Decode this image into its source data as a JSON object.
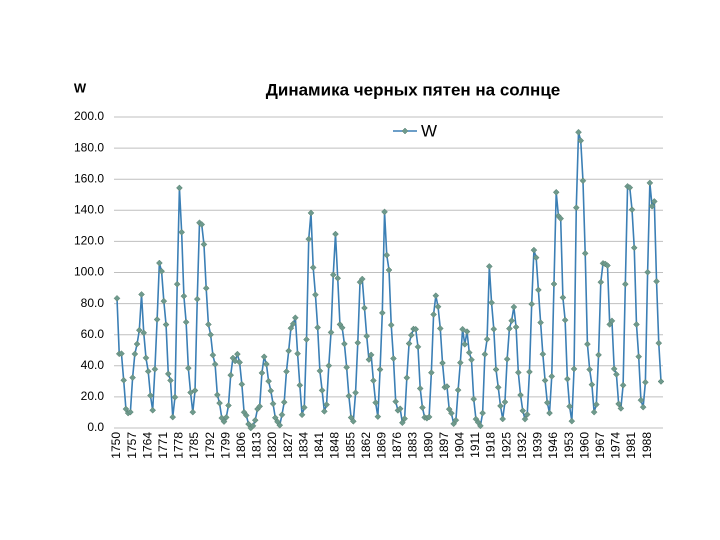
{
  "chart_data": {
    "type": "line",
    "title": "Динамика черных пятен на солнце",
    "y_label": "W",
    "categories": [
      "1750",
      null,
      null,
      null,
      null,
      null,
      null,
      "1757",
      null,
      null,
      null,
      null,
      null,
      null,
      "1764",
      null,
      null,
      null,
      null,
      null,
      null,
      "1771",
      null,
      null,
      null,
      null,
      null,
      null,
      "1778",
      null,
      null,
      null,
      null,
      null,
      null,
      "1785",
      null,
      null,
      null,
      null,
      null,
      null,
      "1792",
      null,
      null,
      null,
      null,
      null,
      null,
      "1799",
      null,
      null,
      null,
      null,
      null,
      null,
      "1806",
      null,
      null,
      null,
      null,
      null,
      null,
      "1813",
      null,
      null,
      null,
      null,
      null,
      null,
      "1820",
      null,
      null,
      null,
      null,
      null,
      null,
      "1827",
      null,
      null,
      null,
      null,
      null,
      null,
      "1834",
      null,
      null,
      null,
      null,
      null,
      null,
      "1841",
      null,
      null,
      null,
      null,
      null,
      null,
      "1848",
      null,
      null,
      null,
      null,
      null,
      null,
      "1855",
      null,
      null,
      null,
      null,
      null,
      null,
      "1862",
      null,
      null,
      null,
      null,
      null,
      null,
      "1869",
      null,
      null,
      null,
      null,
      null,
      null,
      "1876",
      null,
      null,
      null,
      null,
      null,
      null,
      "1883",
      null,
      null,
      null,
      null,
      null,
      null,
      "1890",
      null,
      null,
      null,
      null,
      null,
      null,
      "1897",
      null,
      null,
      null,
      null,
      null,
      null,
      "1904",
      null,
      null,
      null,
      null,
      null,
      null,
      "1911",
      null,
      null,
      null,
      null,
      null,
      null,
      "1918",
      null,
      null,
      null,
      null,
      null,
      null,
      "1925",
      null,
      null,
      null,
      null,
      null,
      null,
      "1932",
      null,
      null,
      null,
      null,
      null,
      null,
      "1939",
      null,
      null,
      null,
      null,
      null,
      null,
      "1946",
      null,
      null,
      null,
      null,
      null,
      null,
      "1953",
      null,
      null,
      null,
      null,
      null,
      null,
      "1960",
      null,
      null,
      null,
      null,
      null,
      null,
      "1967",
      null,
      null,
      null,
      null,
      null,
      null,
      "1974",
      null,
      null,
      null,
      null,
      null,
      null,
      "1981",
      null,
      null,
      null,
      null,
      null,
      null,
      "1988",
      null,
      null,
      null,
      null,
      null,
      null
    ],
    "series": [
      {
        "name": "W",
        "color": "#3b7fb5",
        "marker_color": "#6e9a8c",
        "values": [
          83.4,
          47.7,
          47.8,
          30.7,
          12.2,
          9.6,
          10.2,
          32.4,
          47.6,
          54.0,
          62.9,
          85.9,
          61.2,
          45.1,
          36.4,
          20.9,
          11.4,
          37.8,
          69.8,
          106.1,
          100.8,
          81.6,
          66.5,
          34.8,
          30.6,
          7.0,
          19.8,
          92.5,
          154.4,
          125.9,
          84.8,
          68.1,
          38.5,
          22.8,
          10.2,
          24.1,
          82.9,
          132.0,
          130.9,
          118.1,
          89.9,
          66.6,
          60.0,
          46.9,
          41.0,
          21.3,
          16.0,
          6.4,
          4.1,
          6.8,
          14.5,
          34.0,
          45.0,
          43.1,
          47.5,
          42.2,
          28.1,
          10.1,
          8.1,
          2.5,
          0.0,
          1.4,
          5.0,
          12.2,
          13.9,
          35.4,
          45.8,
          41.1,
          30.1,
          23.9,
          15.6,
          6.6,
          4.0,
          1.8,
          8.5,
          16.6,
          36.3,
          49.6,
          64.2,
          67.0,
          70.9,
          47.8,
          27.5,
          8.5,
          13.2,
          56.9,
          121.5,
          138.3,
          103.2,
          85.7,
          64.6,
          36.7,
          24.2,
          10.7,
          15.0,
          40.1,
          61.5,
          98.5,
          124.7,
          96.3,
          66.6,
          64.5,
          54.1,
          39.0,
          20.6,
          6.7,
          4.3,
          22.7,
          54.8,
          93.8,
          95.8,
          77.2,
          59.1,
          44.0,
          47.0,
          30.5,
          16.3,
          7.3,
          37.6,
          74.0,
          139.0,
          111.2,
          101.6,
          66.2,
          44.7,
          17.0,
          11.3,
          12.4,
          3.4,
          6.0,
          32.3,
          54.3,
          59.7,
          63.7,
          63.5,
          52.2,
          25.4,
          13.1,
          6.8,
          6.3,
          7.1,
          35.6,
          73.0,
          85.1,
          78.0,
          64.0,
          41.8,
          26.2,
          26.7,
          12.1,
          9.5,
          2.7,
          5.0,
          24.4,
          42.0,
          63.5,
          53.8,
          62.0,
          48.5,
          43.9,
          18.6,
          5.7,
          3.6,
          1.4,
          9.6,
          47.4,
          57.1,
          103.9,
          80.6,
          63.6,
          37.6,
          26.1,
          14.2,
          5.8,
          16.7,
          44.3,
          63.9,
          69.0,
          77.8,
          64.9,
          35.7,
          21.2,
          11.1,
          5.7,
          8.7,
          36.1,
          79.7,
          114.4,
          109.6,
          88.8,
          67.8,
          47.5,
          30.6,
          16.3,
          9.6,
          33.2,
          92.6,
          151.6,
          136.3,
          134.7,
          83.9,
          69.4,
          31.5,
          13.9,
          4.4,
          38.0,
          141.7,
          190.2,
          184.8,
          159.0,
          112.3,
          53.9,
          37.6,
          27.9,
          10.2,
          15.1,
          47.0,
          93.8,
          105.9,
          105.5,
          104.5,
          66.6,
          68.9,
          38.0,
          34.5,
          15.5,
          12.6,
          27.5,
          92.5,
          155.4,
          154.6,
          140.4,
          115.9,
          66.6,
          45.9,
          17.9,
          13.4,
          29.4,
          100.2,
          157.6,
          142.6,
          145.7,
          94.3,
          54.6,
          29.9
        ]
      }
    ],
    "ylim": [
      0,
      200
    ],
    "yticks": [
      {
        "value": 0,
        "label": "0.0"
      },
      {
        "value": 20,
        "label": "20.0"
      },
      {
        "value": 40,
        "label": "40.0"
      },
      {
        "value": 60,
        "label": "60.0"
      },
      {
        "value": 80,
        "label": "80.0"
      },
      {
        "value": 100,
        "label": "100.0"
      },
      {
        "value": 120,
        "label": "120.0"
      },
      {
        "value": 140,
        "label": "140.0"
      },
      {
        "value": 160,
        "label": "160.0"
      },
      {
        "value": 180,
        "label": "180.0"
      },
      {
        "value": 200,
        "label": "200.0"
      }
    ],
    "grid": true,
    "legend": "top"
  }
}
